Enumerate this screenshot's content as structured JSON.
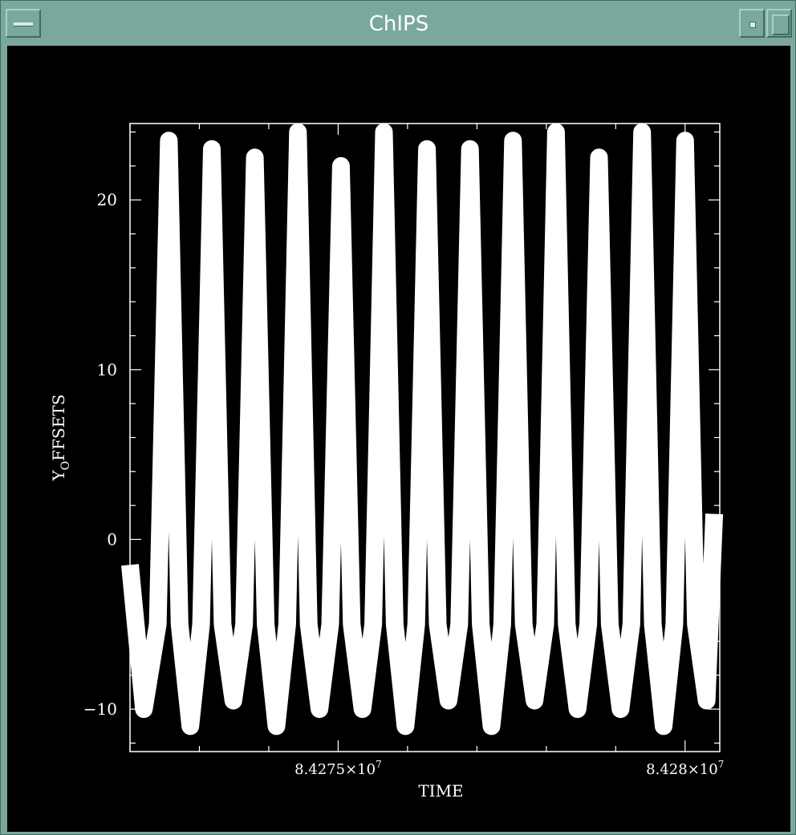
{
  "window": {
    "title": "ChIPS"
  },
  "chart_data": {
    "type": "line",
    "title": "",
    "xlabel": "TIME",
    "ylabel_base": "Y",
    "ylabel_sub": "O",
    "ylabel_rest": "FFSETS",
    "xlim": [
      84272000,
      84280500
    ],
    "ylim": [
      -12.5,
      24.5
    ],
    "grid": false,
    "xticks": [
      {
        "value": 84275000,
        "mantissa": "8.4275",
        "sep": "×",
        "base": "10",
        "exp": "7"
      },
      {
        "value": 84280000,
        "mantissa": "8.428",
        "sep": "×",
        "base": "10",
        "exp": "7"
      }
    ],
    "yticks": [
      {
        "value": -10,
        "label": "−10"
      },
      {
        "value": 0,
        "label": "0"
      },
      {
        "value": 10,
        "label": "10"
      },
      {
        "value": 20,
        "label": "20"
      }
    ],
    "series": [
      {
        "color": "#ffffff",
        "x": [
          84272000,
          84272200,
          84272400,
          84272560,
          84272715,
          84272870,
          84273025,
          84273180,
          84273335,
          84273490,
          84273645,
          84273800,
          84273955,
          84274110,
          84274265,
          84274420,
          84274575,
          84274730,
          84274885,
          84275040,
          84275195,
          84275350,
          84275505,
          84275660,
          84275815,
          84275970,
          84276125,
          84276280,
          84276435,
          84276590,
          84276745,
          84276900,
          84277055,
          84277210,
          84277365,
          84277520,
          84277675,
          84277830,
          84277985,
          84278140,
          84278295,
          84278450,
          84278605,
          84278760,
          84278915,
          84279070,
          84279225,
          84279380,
          84279535,
          84279690,
          84279845,
          84280000,
          84280155,
          84280310,
          84280420
        ],
        "y": [
          -1.5,
          -10,
          -5,
          23.5,
          -5,
          -11,
          -5,
          23,
          -5,
          -9.5,
          -5,
          22.5,
          -5,
          -11,
          -5,
          24,
          -5,
          -10,
          -5,
          22,
          -5,
          -10,
          -5,
          24,
          -5,
          -11,
          -5,
          23,
          -5,
          -9.5,
          -5,
          23,
          -5,
          -11,
          -5,
          23.5,
          -5,
          -9.5,
          -5,
          24,
          -5,
          -10,
          -5,
          22.5,
          -5,
          -10,
          -5,
          24,
          -5,
          -11,
          -5,
          23.5,
          -5,
          -9.5,
          1.5
        ]
      }
    ]
  }
}
